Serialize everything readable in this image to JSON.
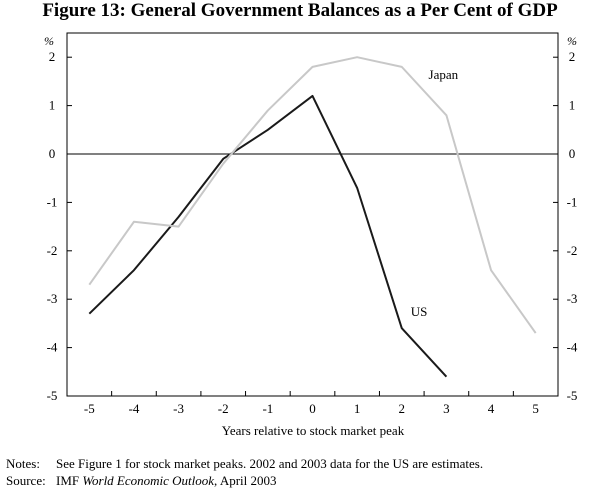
{
  "chart_data": {
    "type": "line",
    "title": "Figure 13: General Government Balances as a Per Cent of GDP",
    "unit_left": "%",
    "unit_right": "%",
    "xlabel": "Years relative to stock market peak",
    "x": [
      -5,
      -4,
      -3,
      -2,
      -1,
      0,
      1,
      2,
      3,
      4,
      5
    ],
    "x_tick_labels": [
      "-5",
      "-4",
      "-3",
      "-2",
      "-1",
      "0",
      "1",
      "2",
      "3",
      "4",
      "5"
    ],
    "ylim": [
      -5,
      2.5
    ],
    "y_ticks": [
      2,
      1,
      0,
      -1,
      -2,
      -3,
      -4,
      -5
    ],
    "y_tick_labels": [
      "2",
      "1",
      "0",
      "-1",
      "-2",
      "-3",
      "-4",
      "-5"
    ],
    "series": [
      {
        "name": "US",
        "color": "#1a1a1a",
        "x": [
          -5,
          -4,
          -3,
          -2,
          -1,
          0,
          1,
          2,
          3
        ],
        "values": [
          -3.3,
          -2.4,
          -1.3,
          -0.1,
          0.5,
          1.2,
          -0.7,
          -3.6,
          -4.6
        ]
      },
      {
        "name": "Japan",
        "color": "#c8c8c8",
        "x": [
          -5,
          -4,
          -3,
          -2,
          -1,
          0,
          1,
          2,
          3,
          4,
          5
        ],
        "values": [
          -2.7,
          -1.4,
          -1.5,
          -0.2,
          0.9,
          1.8,
          2.0,
          1.8,
          0.8,
          -2.4,
          -3.7
        ]
      }
    ]
  },
  "notes": {
    "notes_key": "Notes:",
    "notes_text": "See Figure 1 for stock market peaks. 2002 and 2003 data for the US are estimates.",
    "source_key": "Source:",
    "source_prefix": "IMF ",
    "source_italic": "World Economic Outlook",
    "source_suffix": ", April 2003"
  }
}
